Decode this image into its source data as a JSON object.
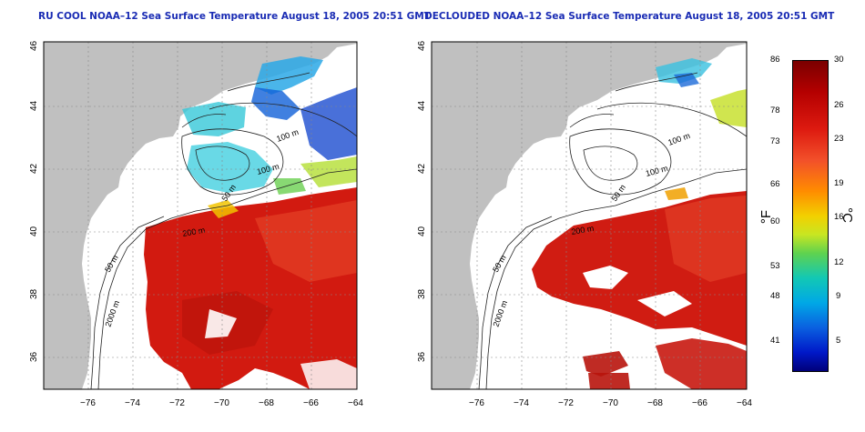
{
  "panels": [
    {
      "title": "RU COOL NOAA–12 Sea Surface Temperature August 18, 2005 20:51 GMT",
      "contour_labels": [
        "100 m",
        "100 m",
        "50 m",
        "200 m",
        "50 m",
        "2000 m"
      ]
    },
    {
      "title": "DECLOUDED NOAA–12 Sea Surface Temperature August 18, 2005 20:51 GMT",
      "contour_labels": [
        "100 m",
        "100 m",
        "50 m",
        "200 m",
        "50 m",
        "2000 m"
      ]
    }
  ],
  "x_ticks": [
    "−76",
    "−74",
    "−72",
    "−70",
    "−68",
    "−66",
    "−64"
  ],
  "y_ticks": [
    "46",
    "44",
    "42",
    "40",
    "38",
    "36"
  ],
  "colorbar": {
    "fahrenheit_unit": "°F",
    "celsius_unit": "°C",
    "fahrenheit_ticks": [
      "86",
      "78",
      "73",
      "66",
      "60",
      "53",
      "48",
      "41"
    ],
    "celsius_ticks": [
      "30",
      "26",
      "23",
      "19",
      "16",
      "12",
      "9",
      "5"
    ]
  },
  "colors": {
    "land": "#c0c0c0",
    "title": "#1a2cb4",
    "warm": "#d01c12",
    "cool": "#28a8e8"
  }
}
